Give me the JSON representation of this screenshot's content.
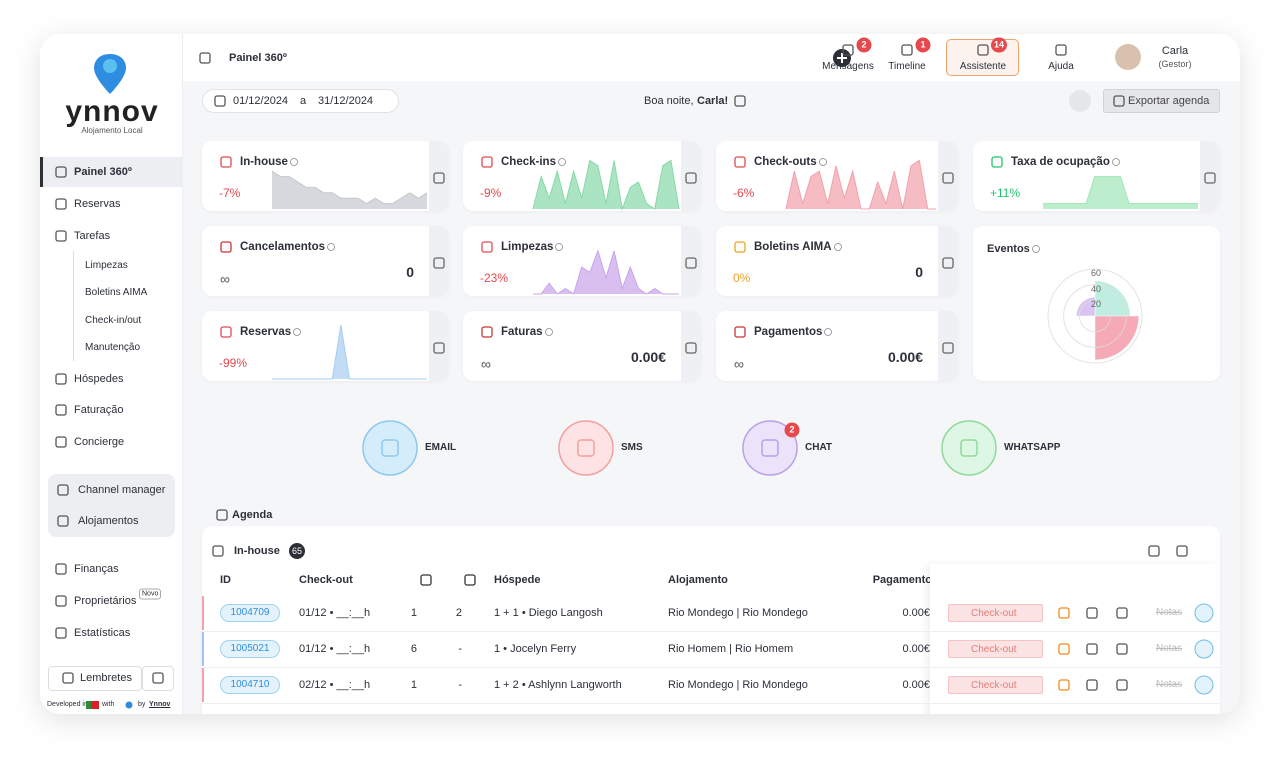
{
  "sidebar": {
    "logo": "ynnov",
    "tagline": "Alojamento Local",
    "menu": [
      "Painel 360º",
      "Reservas",
      "Tarefas"
    ],
    "tasks": [
      "Limpezas",
      "Boletins AIMA",
      "Check-in/out",
      "Manutenção"
    ],
    "menu2": [
      "Hóspedes",
      "Faturação",
      "Concierge"
    ],
    "channel": [
      "Channel manager",
      "Alojamentos"
    ],
    "menu3": [
      "Finanças",
      "Proprietários",
      "Estatísticas"
    ],
    "new_badge": "Novo",
    "reminders": "Lembretes",
    "footer": {
      "developed": "Developed in",
      "with": "with",
      "by": "by",
      "brand": "Ynnov"
    }
  },
  "topbar": {
    "title": "Painel 360º",
    "items": [
      {
        "label": "Mensagens",
        "badge": "2"
      },
      {
        "label": "Timeline",
        "badge": "1"
      },
      {
        "label": "Assistente",
        "badge": "14"
      },
      {
        "label": "Ajuda"
      }
    ],
    "user": {
      "name": "Carla",
      "role": "(Gestor)"
    }
  },
  "filters": {
    "from": "01/12/2024",
    "sep": "a",
    "to": "31/12/2024",
    "greeting": "Boa noite,",
    "name": "Carla!",
    "export": "Exportar agenda"
  },
  "kpis": [
    {
      "title": "In-house",
      "delta": "-7%",
      "delta_color": "#e5484d",
      "color": "#c3c7cf",
      "ylim": [
        0,
        10
      ],
      "trend": [
        7,
        6,
        6,
        5,
        4,
        4,
        3,
        3,
        2,
        2,
        2,
        1,
        2,
        1,
        1,
        2,
        3,
        2,
        3
      ]
    },
    {
      "title": "Check-ins",
      "delta": "-9%",
      "delta_color": "#e5484d",
      "color": "#86d9a8",
      "ylim": [
        0,
        10
      ],
      "trend": [
        0,
        6,
        2,
        7,
        1,
        7,
        2,
        9,
        8,
        1,
        9,
        0,
        4,
        5,
        1,
        0,
        8,
        9,
        0
      ]
    },
    {
      "title": "Check-outs",
      "delta": "-6%",
      "delta_color": "#e5484d",
      "color": "#f2a0ab",
      "ylim": [
        0,
        10
      ],
      "trend": [
        0,
        7,
        1,
        6,
        7,
        1,
        8,
        2,
        7,
        0,
        0,
        5,
        1,
        7,
        0,
        8,
        9,
        0,
        0
      ]
    },
    {
      "title": "Taxa de ocupação",
      "delta": "+11%",
      "delta_color": "#22c36b",
      "color": "#9fe6b6",
      "ylim": [
        0,
        10
      ],
      "trend": [
        1,
        1,
        1,
        1,
        1,
        1,
        6,
        6,
        6,
        6,
        1,
        1,
        1,
        1,
        1,
        1,
        1,
        1,
        1
      ]
    },
    {
      "title": "Cancelamentos",
      "value": "0",
      "sub": "∞"
    },
    {
      "title": "Limpezas",
      "delta": "-23%",
      "delta_color": "#e5484d",
      "color": "#c7a4ea",
      "ylim": [
        0,
        10
      ],
      "trend": [
        0,
        0,
        2,
        0,
        1,
        0,
        5,
        4,
        8,
        3,
        8,
        1,
        5,
        1,
        0,
        1,
        0,
        0,
        0
      ]
    },
    {
      "title": "Boletins AIMA",
      "value": "0",
      "delta": "0%",
      "delta_color": "#f0a020"
    },
    {
      "title": "Reservas",
      "delta": "-99%",
      "delta_color": "#e5484d",
      "color": "#a6cdf0",
      "ylim": [
        0,
        10
      ],
      "trend": [
        0,
        0,
        0,
        0,
        0,
        0,
        0,
        0,
        10,
        0,
        0,
        0,
        0,
        0,
        0,
        0,
        0,
        0,
        0
      ]
    },
    {
      "title": "Faturas",
      "value": "0.00€",
      "sub": "∞"
    },
    {
      "title": "Pagamentos",
      "value": "0.00€",
      "sub": "∞"
    }
  ],
  "eventos": {
    "title": "Eventos",
    "rlim": [
      0,
      60
    ],
    "rticks": [
      20,
      40,
      60
    ],
    "values": [
      45,
      56,
      0,
      24
    ],
    "colors": [
      "#bfeee0",
      "#f6a9b6",
      "#e6e6e6",
      "#d9c4f2"
    ]
  },
  "channels": [
    {
      "label": "EMAIL"
    },
    {
      "label": "SMS"
    },
    {
      "label": "CHAT",
      "badge": "2"
    },
    {
      "label": "WHATSAPP"
    }
  ],
  "agenda": {
    "title": "Agenda",
    "section": "In-house",
    "count": "65",
    "columns": [
      "ID",
      "Check-out",
      "Hóspede",
      "Alojamento",
      "Pagamento"
    ],
    "rows": [
      {
        "id": "1004709",
        "checkout": "01/12 • __:__h",
        "nights": "1",
        "beds": "2",
        "guest": "1 + 1 • Diego Langosh",
        "unit": "Rio Mondego | Rio Mondego",
        "payment": "0.00€",
        "action": "Check-out",
        "notes": "Notas"
      },
      {
        "id": "1005021",
        "checkout": "01/12 • __:__h",
        "nights": "6",
        "beds": "-",
        "guest": "1 • Jocelyn Ferry",
        "unit": "Rio Homem | Rio Homem",
        "payment": "0.00€",
        "action": "Check-out",
        "notes": "Notas"
      },
      {
        "id": "1004710",
        "checkout": "02/12 • __:__h",
        "nights": "1",
        "beds": "-",
        "guest": "1 + 2 • Ashlynn Langworth",
        "unit": "Rio Mondego | Rio Mondego",
        "payment": "0.00€",
        "action": "Check-out",
        "notes": "Notas"
      }
    ]
  }
}
